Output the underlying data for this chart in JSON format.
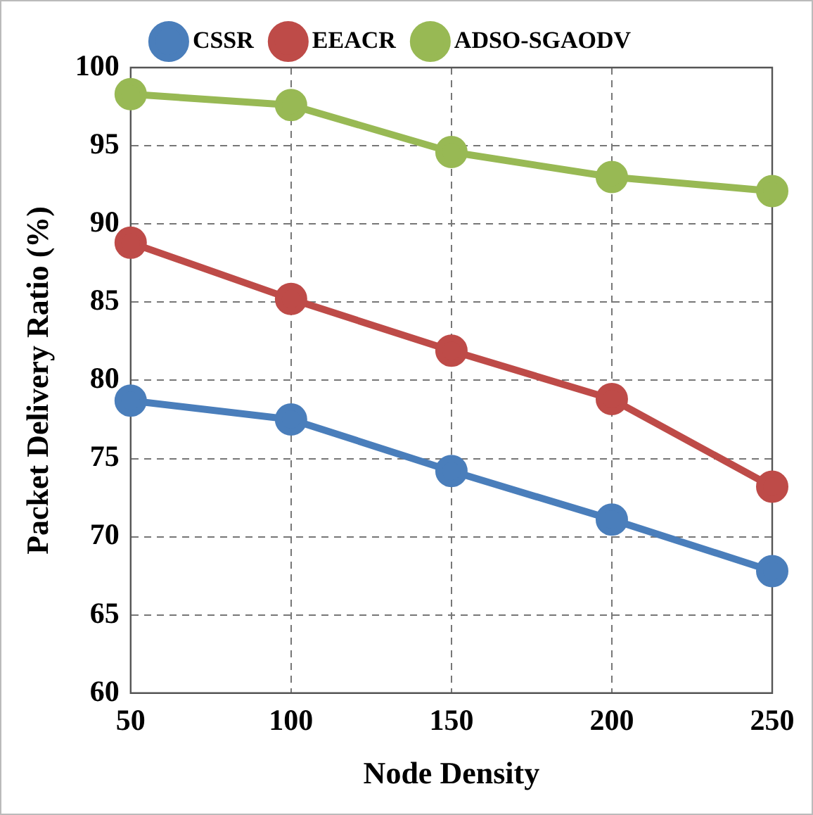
{
  "chart_data": {
    "type": "line",
    "xlabel": "Node Density",
    "ylabel": "Packet Delivery Ratio (%)",
    "x": [
      50,
      100,
      150,
      200,
      250
    ],
    "xlim": [
      50,
      250
    ],
    "xticks": [
      50,
      100,
      150,
      200,
      250
    ],
    "ylim": [
      60,
      100
    ],
    "yticks": [
      60,
      65,
      70,
      75,
      80,
      85,
      90,
      95,
      100
    ],
    "series": [
      {
        "name": "CSSR",
        "color": "#4a7ebb",
        "values": [
          78.7,
          77.5,
          74.2,
          71.1,
          67.8
        ]
      },
      {
        "name": "EEACR",
        "color": "#be4b48",
        "values": [
          88.8,
          85.2,
          81.9,
          78.8,
          73.2
        ]
      },
      {
        "name": "ADSO-SGAODV",
        "color": "#98b954",
        "values": [
          98.3,
          97.6,
          94.6,
          93.0,
          92.1
        ]
      }
    ],
    "grid": true,
    "legend": "top",
    "marker": "circle",
    "line_style": "solid"
  }
}
